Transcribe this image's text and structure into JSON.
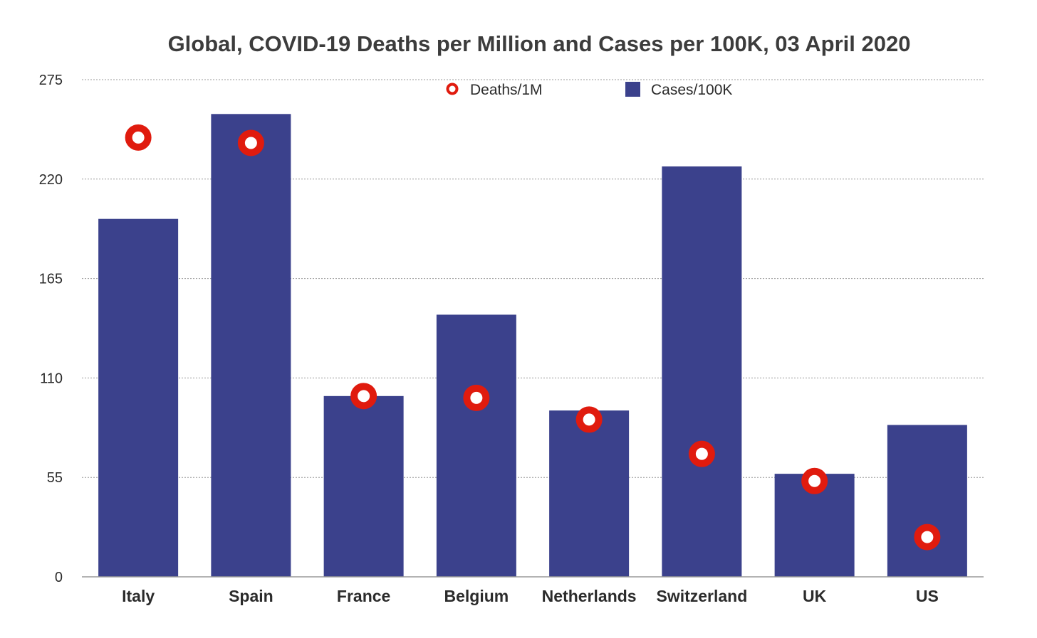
{
  "colors": {
    "bar": "#3b418c",
    "marker": "#e01b0e",
    "marker_center": "#ffffff",
    "grid": "#9a9a9a",
    "axis": "#9a9a9a",
    "text": "#2b2b2b"
  },
  "chart_data": {
    "type": "bar",
    "title": "Global, COVID-19 Deaths per Million and Cases per 100K, 03 April 2020",
    "xlabel": "",
    "ylabel": "",
    "categories": [
      "Italy",
      "Spain",
      "France",
      "Belgium",
      "Netherlands",
      "Switzerland",
      "UK",
      "US"
    ],
    "ylim": [
      0,
      275
    ],
    "yticks": [
      0,
      55,
      110,
      165,
      220,
      275
    ],
    "grid": true,
    "legend_position": "top-center",
    "series": [
      {
        "name": "Deaths/1M",
        "kind": "scatter",
        "marker": "ring",
        "values": [
          243,
          240,
          100,
          99,
          87,
          68,
          53,
          22
        ]
      },
      {
        "name": "Cases/100K",
        "kind": "bar",
        "values": [
          198,
          256,
          100,
          145,
          92,
          227,
          57,
          84
        ]
      }
    ]
  }
}
